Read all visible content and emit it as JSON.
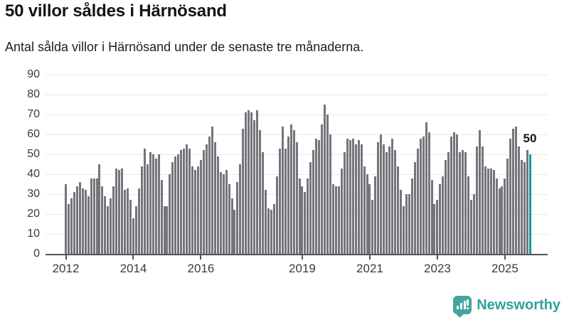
{
  "header": {
    "title": "50 villor såldes i Härnösand",
    "subtitle": "Antal sålda villor i Härnösand under de senaste tre månaderna."
  },
  "chart_data": {
    "type": "bar",
    "title": "50 villor såldes i Härnösand",
    "subtitle": "Antal sålda villor i Härnösand under de senaste tre månaderna.",
    "x_unit": "month",
    "x_start": "2012-01",
    "x_end": "2025-10",
    "x_tick_years": [
      2012,
      2014,
      2016,
      2019,
      2021,
      2023,
      2025
    ],
    "x_tick_labels": [
      "2012",
      "2014",
      "2016",
      "2019",
      "2021",
      "2023",
      "2025"
    ],
    "y_ticks": [
      0,
      10,
      20,
      30,
      40,
      50,
      60,
      70,
      80,
      90
    ],
    "ylim": [
      0,
      95
    ],
    "grid": "horizontal",
    "legend": "none",
    "bar_color": "#74747c",
    "highlight_color": "#0f9b9d",
    "highlight_index": 165,
    "annotation": {
      "text": "50",
      "target": "last-bar"
    },
    "values": [
      35,
      25,
      28,
      31,
      34,
      36,
      33,
      32,
      29,
      38,
      38,
      38,
      45,
      34,
      29,
      24,
      28,
      34,
      43,
      42,
      43,
      32,
      33,
      27,
      18,
      24,
      33,
      44,
      53,
      45,
      51,
      50,
      48,
      50,
      37,
      24,
      24,
      40,
      46,
      49,
      50,
      52,
      53,
      55,
      53,
      44,
      42,
      44,
      47,
      52,
      55,
      59,
      64,
      56,
      49,
      41,
      40,
      42,
      35,
      28,
      22,
      36,
      45,
      63,
      71,
      72,
      71,
      67,
      72,
      62,
      51,
      32,
      23,
      22,
      25,
      39,
      53,
      64,
      53,
      59,
      65,
      62,
      56,
      38,
      34,
      31,
      38,
      46,
      52,
      58,
      57,
      65,
      75,
      70,
      60,
      35,
      34,
      34,
      43,
      51,
      58,
      57,
      58,
      55,
      57,
      55,
      44,
      40,
      35,
      27,
      39,
      56,
      60,
      55,
      51,
      54,
      58,
      52,
      44,
      32,
      24,
      30,
      30,
      38,
      46,
      53,
      58,
      59,
      66,
      61,
      37,
      25,
      27,
      35,
      39,
      47,
      51,
      59,
      61,
      60,
      51,
      52,
      51,
      39,
      27,
      30,
      54,
      62,
      54,
      44,
      43,
      43,
      42,
      38,
      33,
      34,
      38,
      48,
      58,
      63,
      64,
      54,
      47,
      46,
      52,
      50
    ]
  },
  "footer": {
    "brand": "Newsworthy",
    "logo_icon": "bar-chart-speech-bubble-icon"
  }
}
